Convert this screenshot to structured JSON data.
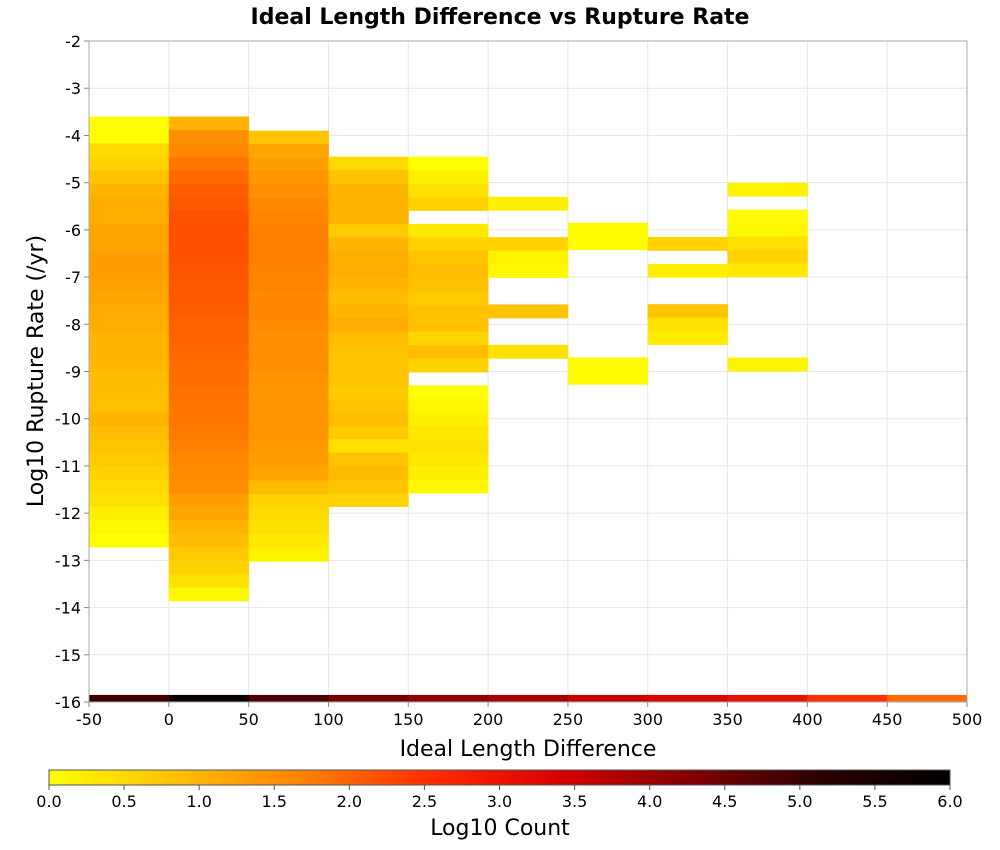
{
  "chart_data": {
    "type": "heatmap",
    "title": "Ideal Length Difference vs Rupture Rate",
    "xlabel": "Ideal Length Difference",
    "ylabel": "Log10 Rupture Rate (/yr)",
    "xlim": [
      -50,
      500
    ],
    "ylim": [
      -16,
      -2
    ],
    "x_ticks": [
      "-50",
      "0",
      "50",
      "100",
      "150",
      "200",
      "250",
      "300",
      "350",
      "400",
      "450",
      "500"
    ],
    "y_ticks": [
      "-2",
      "-3",
      "-4",
      "-5",
      "-6",
      "-7",
      "-8",
      "-9",
      "-10",
      "-11",
      "-12",
      "-13",
      "-14",
      "-15",
      "-16"
    ],
    "x_bin_width": 50,
    "y_bin_width": 0.285,
    "grid": true,
    "colorscale": {
      "label": "Log10 Count",
      "range": [
        0.0,
        6.0
      ],
      "ticks": [
        "0.0",
        "0.5",
        "1.0",
        "1.5",
        "2.0",
        "2.5",
        "3.0",
        "3.5",
        "4.0",
        "4.5",
        "5.0",
        "5.5",
        "6.0"
      ],
      "colors": [
        "#ffff00",
        "#ffbf00",
        "#ff7f00",
        "#ff2a00",
        "#d40000",
        "#800000",
        "#2a0000",
        "#000000"
      ]
    },
    "marginal_row": {
      "y_range": [
        -16,
        -15.85
      ],
      "x_bins": [
        -50,
        0,
        50,
        100,
        150,
        200,
        250,
        300,
        350,
        400,
        450
      ],
      "values": [
        4.95,
        5.8,
        4.8,
        4.4,
        4.1,
        3.9,
        3.55,
        3.3,
        3.05,
        2.5,
        1.9
      ]
    },
    "columns": [
      {
        "x_start": -50,
        "y_top": -3.6,
        "values": [
          0.0,
          0.0,
          0.5,
          0.6,
          0.8,
          1.0,
          1.1,
          1.1,
          1.2,
          1.2,
          1.3,
          1.3,
          1.25,
          1.2,
          1.1,
          1.1,
          1.0,
          1.0,
          0.95,
          0.9,
          0.9,
          0.85,
          1.0,
          0.9,
          0.8,
          0.7,
          0.6,
          0.5,
          0.4,
          0.2,
          0.1,
          0.0
        ]
      },
      {
        "x_start": 0,
        "y_top": -3.6,
        "values": [
          1.0,
          1.5,
          1.6,
          1.8,
          1.95,
          2.05,
          2.1,
          2.2,
          2.2,
          2.2,
          2.2,
          2.15,
          2.1,
          2.1,
          2.05,
          2.0,
          2.0,
          1.95,
          1.9,
          1.9,
          1.85,
          1.8,
          1.8,
          1.75,
          1.7,
          1.6,
          1.55,
          1.5,
          1.3,
          1.2,
          1.0,
          0.9,
          0.7,
          0.6,
          0.4,
          0.1
        ]
      },
      {
        "x_start": 50,
        "y_top": -3.9,
        "values": [
          0.8,
          1.2,
          1.3,
          1.4,
          1.5,
          1.6,
          1.65,
          1.7,
          1.7,
          1.7,
          1.65,
          1.65,
          1.6,
          1.6,
          1.55,
          1.5,
          1.5,
          1.5,
          1.45,
          1.4,
          1.4,
          1.4,
          1.4,
          1.35,
          1.3,
          1.2,
          0.9,
          0.6,
          0.5,
          0.4,
          0.3,
          0.15
        ]
      },
      {
        "x_start": 100,
        "y_top": -4.45,
        "values": [
          0.5,
          0.8,
          1.0,
          1.0,
          1.0,
          0.7,
          1.0,
          1.1,
          1.1,
          1.0,
          0.9,
          1.0,
          1.1,
          0.9,
          0.8,
          0.8,
          0.8,
          0.7,
          0.8,
          0.9,
          0.7,
          0.4,
          0.8,
          0.9,
          0.8,
          0.6
        ]
      },
      {
        "x_start": 150,
        "y_top": -4.45,
        "values": [
          0.0,
          0.2,
          0.4,
          0.6,
          null,
          0.3,
          0.6,
          0.8,
          0.9,
          0.85,
          0.7,
          0.85,
          0.85,
          0.55,
          0.9,
          0.6,
          null,
          0.0,
          0.1,
          0.2,
          0.3,
          0.4,
          0.3,
          0.2,
          0.1
        ]
      },
      {
        "x_start": 200,
        "y_top": -5.3,
        "values": [
          0.2,
          null,
          null,
          0.6,
          0.15,
          0.1,
          null,
          null,
          0.8,
          null,
          null,
          0.4
        ]
      },
      {
        "x_start": 250,
        "y_top": -5.85,
        "values": [
          0.05,
          0.05,
          null,
          null,
          null,
          null,
          null,
          null,
          null,
          null,
          0.05,
          0.05
        ]
      },
      {
        "x_start": 300,
        "y_top": -6.15,
        "values": [
          0.6,
          null,
          0.2,
          null,
          null,
          0.8,
          0.4,
          0.25
        ]
      },
      {
        "x_start": 350,
        "y_top": -5.0,
        "values": [
          0.15,
          null,
          0.05,
          0.1,
          0.4,
          0.6,
          0.3,
          null,
          null,
          null,
          null,
          null,
          null,
          0.15
        ]
      }
    ]
  }
}
